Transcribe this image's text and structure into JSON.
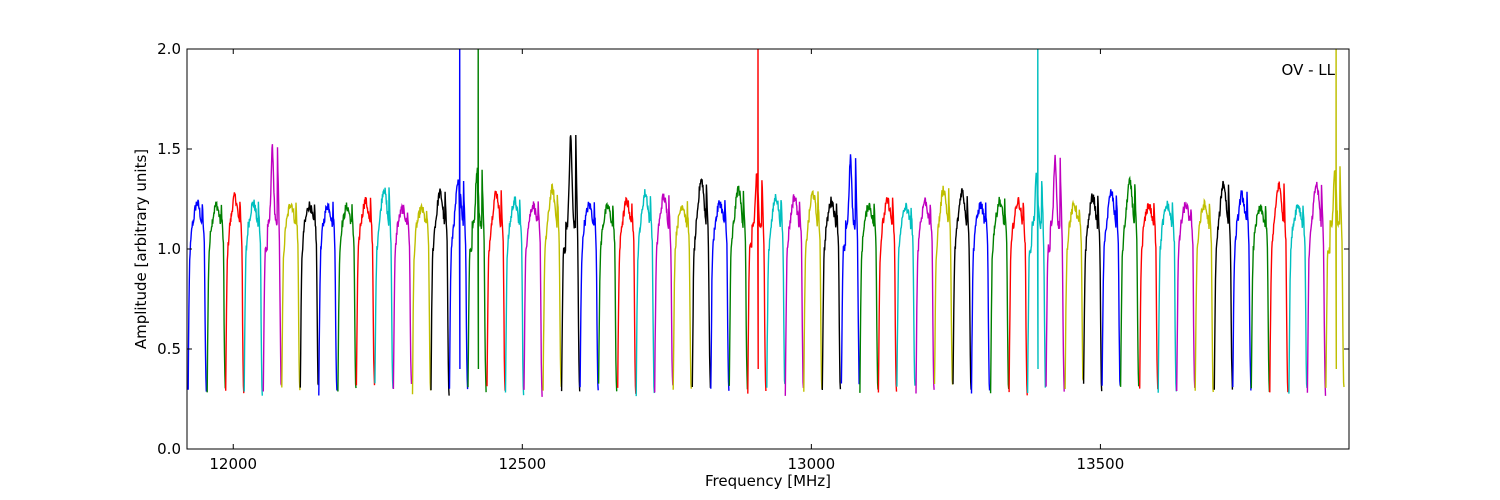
{
  "chart_data": {
    "type": "line",
    "title": "",
    "annotation": "OV - LL",
    "xlabel": "Frequency [MHz]",
    "ylabel": "Amplitude [arbitrary units]",
    "xlim": [
      11920,
      13930
    ],
    "ylim": [
      0.0,
      2.0
    ],
    "xticks": [
      12000,
      12500,
      13000,
      13500
    ],
    "xtick_labels": [
      "12000",
      "12500",
      "13000",
      "13500"
    ],
    "yticks": [
      0.0,
      0.5,
      1.0,
      1.5,
      2.0
    ],
    "ytick_labels": [
      "0.0",
      "0.5",
      "1.0",
      "1.5",
      "2.0"
    ],
    "grid": false,
    "legend": "none",
    "color_cycle": [
      "#0000ff",
      "#008000",
      "#ff0000",
      "#00bfbf",
      "#bf00bf",
      "#bfbf00",
      "#000000"
    ],
    "description": "Repeated channel bandpass shapes: each segment rises from ~0.3 to a plateau ~1.2 and drops back to ~0.3; segments cycle through colours.",
    "segment_width_mhz": 32.3,
    "segments": [
      {
        "start": 11922,
        "peak": 1.23
      },
      {
        "start": 11955,
        "peak": 1.22
      },
      {
        "start": 11987,
        "peak": 1.26
      },
      {
        "start": 12019,
        "peak": 1.23
      },
      {
        "start": 12052,
        "peak": 1.5
      },
      {
        "start": 12084,
        "peak": 1.23
      },
      {
        "start": 12116,
        "peak": 1.22
      },
      {
        "start": 12148,
        "peak": 1.22
      },
      {
        "start": 12181,
        "peak": 1.21
      },
      {
        "start": 12213,
        "peak": 1.24
      },
      {
        "start": 12245,
        "peak": 1.3
      },
      {
        "start": 12277,
        "peak": 1.2
      },
      {
        "start": 12310,
        "peak": 1.2
      },
      {
        "start": 12342,
        "peak": 1.28
      },
      {
        "start": 12374,
        "peak": 1.33,
        "spike": 2.0
      },
      {
        "start": 12406,
        "peak": 1.4,
        "spike": 2.0
      },
      {
        "start": 12439,
        "peak": 1.28
      },
      {
        "start": 12471,
        "peak": 1.24
      },
      {
        "start": 12503,
        "peak": 1.22
      },
      {
        "start": 12536,
        "peak": 1.3
      },
      {
        "start": 12568,
        "peak": 1.56
      },
      {
        "start": 12600,
        "peak": 1.22
      },
      {
        "start": 12632,
        "peak": 1.21
      },
      {
        "start": 12665,
        "peak": 1.24
      },
      {
        "start": 12697,
        "peak": 1.28
      },
      {
        "start": 12729,
        "peak": 1.26
      },
      {
        "start": 12761,
        "peak": 1.22
      },
      {
        "start": 12794,
        "peak": 1.35
      },
      {
        "start": 12826,
        "peak": 1.23
      },
      {
        "start": 12858,
        "peak": 1.3
      },
      {
        "start": 12890,
        "peak": 1.37,
        "spike": 2.0
      },
      {
        "start": 12923,
        "peak": 1.26
      },
      {
        "start": 12955,
        "peak": 1.26
      },
      {
        "start": 12987,
        "peak": 1.28
      },
      {
        "start": 13019,
        "peak": 1.24
      },
      {
        "start": 13052,
        "peak": 1.45
      },
      {
        "start": 13084,
        "peak": 1.22
      },
      {
        "start": 13116,
        "peak": 1.24
      },
      {
        "start": 13148,
        "peak": 1.21
      },
      {
        "start": 13181,
        "peak": 1.24
      },
      {
        "start": 13213,
        "peak": 1.3
      },
      {
        "start": 13245,
        "peak": 1.29
      },
      {
        "start": 13277,
        "peak": 1.22
      },
      {
        "start": 13310,
        "peak": 1.24
      },
      {
        "start": 13342,
        "peak": 1.24
      },
      {
        "start": 13374,
        "peak": 1.37,
        "spike": 2.0
      },
      {
        "start": 13406,
        "peak": 1.45
      },
      {
        "start": 13439,
        "peak": 1.22
      },
      {
        "start": 13471,
        "peak": 1.26
      },
      {
        "start": 13503,
        "peak": 1.28
      },
      {
        "start": 13535,
        "peak": 1.33
      },
      {
        "start": 13568,
        "peak": 1.22
      },
      {
        "start": 13600,
        "peak": 1.22
      },
      {
        "start": 13632,
        "peak": 1.22
      },
      {
        "start": 13664,
        "peak": 1.22
      },
      {
        "start": 13697,
        "peak": 1.33
      },
      {
        "start": 13729,
        "peak": 1.27
      },
      {
        "start": 13761,
        "peak": 1.2
      },
      {
        "start": 13793,
        "peak": 1.32
      },
      {
        "start": 13826,
        "peak": 1.22
      },
      {
        "start": 13858,
        "peak": 1.32
      },
      {
        "start": 13890,
        "peak": 1.4,
        "spike": 2.0
      }
    ]
  }
}
